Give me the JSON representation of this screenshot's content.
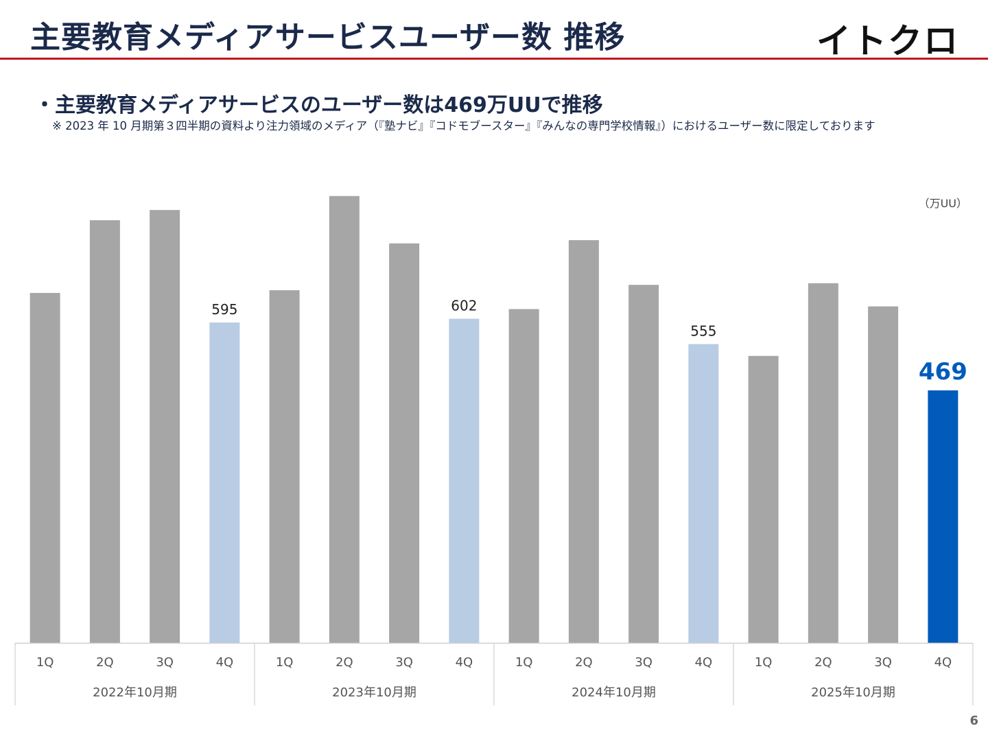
{
  "header": {
    "title": "主要教育メディアサービスユーザー数 推移",
    "logo_text": "イトクロ"
  },
  "body": {
    "headline": "・主要教育メディアサービスのユーザー数は469万UUで推移",
    "note": "※ 2023 年 10 月期第３四半期の資料より注力領域のメディア（『塾ナビ』『コドモブースター』『みんなの専門学校情報』）におけるユーザー数に限定しております"
  },
  "footer": {
    "page_number": "6"
  },
  "colors": {
    "title": "#1b2a4a",
    "rule": "#c0161d",
    "bar_default": "#a6a6a6",
    "bar_q4": "#b8cce4",
    "bar_latest": "#005bbb"
  },
  "chart_data": {
    "type": "bar",
    "unit_label": "（万UU）",
    "categories": [
      "1Q",
      "2Q",
      "3Q",
      "4Q",
      "1Q",
      "2Q",
      "3Q",
      "4Q",
      "1Q",
      "2Q",
      "3Q",
      "4Q",
      "1Q",
      "2Q",
      "3Q",
      "4Q"
    ],
    "groups": [
      {
        "label": "2022年10月期",
        "start": 0,
        "count": 4
      },
      {
        "label": "2023年10月期",
        "start": 4,
        "count": 4
      },
      {
        "label": "2024年10月期",
        "start": 8,
        "count": 4
      },
      {
        "label": "2025年10月期",
        "start": 12,
        "count": 4
      }
    ],
    "values": [
      650,
      785,
      804,
      595,
      655,
      830,
      742,
      602,
      620,
      748,
      665,
      555,
      533,
      668,
      625,
      469
    ],
    "value_labels": [
      "",
      "",
      "",
      "595",
      "",
      "",
      "",
      "602",
      "",
      "",
      "",
      "555",
      "",
      "",
      "",
      "469"
    ],
    "highlight_index": 15,
    "ylim": [
      0,
      850
    ],
    "grid": false
  }
}
